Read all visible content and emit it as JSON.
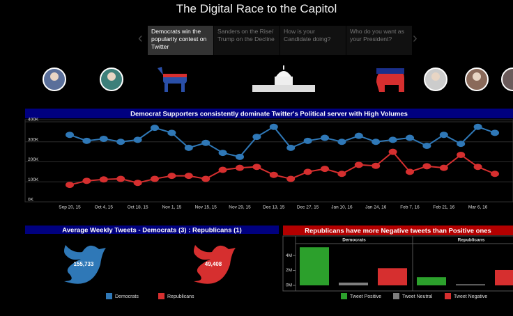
{
  "header": {
    "title": "The Digital Race to the Capitol"
  },
  "nav": {
    "items": [
      "Democrats win the popularity contest on Twitter",
      "Sanders on the Rise/ Trump on the Decline",
      "How is your Candidate doing?",
      "Who do you want as your President?"
    ],
    "active": 0
  },
  "chart_data": [
    {
      "type": "line",
      "title": "Democrat Supporters consistently dominate Twitter's Political server with High Volumes",
      "categories": [
        "Sep 20, 15",
        null,
        "Oct 4, 15",
        null,
        "Oct 18, 15",
        null,
        "Nov 1, 15",
        null,
        "Nov 15, 15",
        null,
        "Nov 29, 15",
        null,
        "Dec 13, 15",
        null,
        "Dec 27, 15",
        null,
        "Jan 10, 16",
        null,
        "Jan 24, 16",
        null,
        "Feb 7, 16",
        null,
        "Feb 21, 16",
        null,
        "Mar 6, 16",
        null
      ],
      "series": [
        {
          "color": "#2f78b7",
          "values": [
            335000,
            305000,
            315000,
            300000,
            310000,
            370000,
            345000,
            270000,
            295000,
            245000,
            225000,
            325000,
            375000,
            270000,
            305000,
            320000,
            300000,
            330000,
            300000,
            310000,
            320000,
            280000,
            335000,
            290000,
            375000,
            345000
          ]
        },
        {
          "color": "#d62f2f",
          "values": [
            85000,
            105000,
            112000,
            115000,
            95000,
            115000,
            130000,
            130000,
            115000,
            160000,
            170000,
            175000,
            135000,
            115000,
            150000,
            165000,
            140000,
            185000,
            180000,
            250000,
            150000,
            178000,
            170000,
            235000,
            175000,
            140000
          ]
        }
      ],
      "ylim": [
        0,
        400000
      ],
      "yticks": [
        {
          "value": 0,
          "label": "0K"
        },
        {
          "value": 100000,
          "label": "100K"
        },
        {
          "value": 200000,
          "label": "200K"
        },
        {
          "value": 300000,
          "label": "300K"
        },
        {
          "value": 400000,
          "label": "400K"
        }
      ],
      "grid": true
    },
    {
      "type": "symbol",
      "title": "Average Weekly Tweets - Democrats (3) : Republicans (1)",
      "categories": [
        "Democrats",
        "Republicans"
      ],
      "values": [
        155733,
        49408
      ],
      "value_labels": [
        "155,733",
        "49,408"
      ],
      "colors": [
        "#2f78b7",
        "#d62f2f"
      ]
    },
    {
      "type": "bar",
      "title": "Republicans have more Negative tweets than Positive ones",
      "categories": [
        "Democrats",
        "Republicans"
      ],
      "series": [
        {
          "name": "Tweet Positive",
          "color": "#2ca02c",
          "values": [
            5100000,
            1100000
          ]
        },
        {
          "name": "Tweet Neutral",
          "color": "#7f7f7f",
          "values": [
            370000,
            150000
          ]
        },
        {
          "name": "Tweet Negative",
          "color": "#d62f2f",
          "values": [
            2300000,
            2050000
          ]
        }
      ],
      "ylim": [
        0,
        5400000
      ],
      "yticks": [
        {
          "value": 0,
          "label": "0M"
        },
        {
          "value": 2000000,
          "label": "2M"
        },
        {
          "value": 4000000,
          "label": "4M"
        }
      ],
      "grid": true
    }
  ]
}
